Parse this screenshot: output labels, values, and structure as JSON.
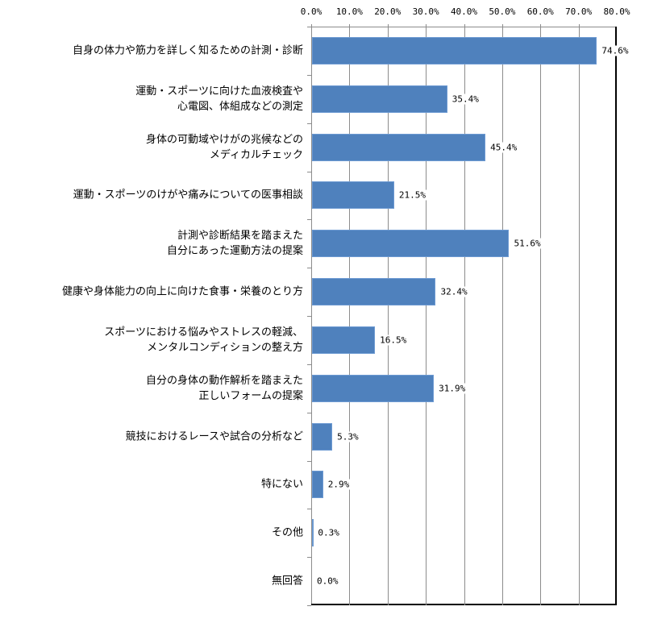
{
  "chart_data": {
    "type": "bar",
    "orientation": "horizontal",
    "title": "",
    "xlabel": "",
    "ylabel": "",
    "xlim": [
      0,
      80
    ],
    "grid": true,
    "legend": null,
    "bar_color": "#4f81bd",
    "tick_labels": [
      "0.0%",
      "10.0%",
      "20.0%",
      "30.0%",
      "40.0%",
      "50.0%",
      "60.0%",
      "70.0%",
      "80.0%"
    ],
    "categories": [
      "自身の体力や筋力を詳しく知るための計測・診断",
      "運動・スポーツに向けた血液検査や\n心電図、体組成などの測定",
      "身体の可動域やけがの兆候などの\nメディカルチェック",
      "運動・スポーツのけがや痛みについての医事相談",
      "計測や診断結果を踏まえた\n自分にあった運動方法の提案",
      "健康や身体能力の向上に向けた食事・栄養のとり方",
      "スポーツにおける悩みやストレスの軽減、\nメンタルコンディションの整え方",
      "自分の身体の動作解析を踏まえた\n正しいフォームの提案",
      "競技におけるレースや試合の分析など",
      "特にない",
      "その他",
      "無回答"
    ],
    "values": [
      74.6,
      35.4,
      45.4,
      21.5,
      51.6,
      32.4,
      16.5,
      31.9,
      5.3,
      2.9,
      0.3,
      0.0
    ],
    "value_labels": [
      "74.6%",
      "35.4%",
      "45.4%",
      "21.5%",
      "51.6%",
      "32.4%",
      "16.5%",
      "31.9%",
      "5.3%",
      "2.9%",
      "0.3%",
      "0.0%"
    ]
  }
}
